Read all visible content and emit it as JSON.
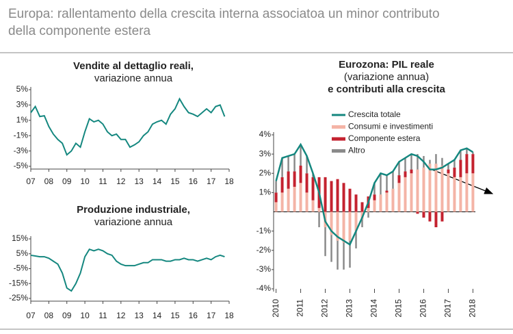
{
  "title": "Europa: rallentamento della crescita interna associatoa un minor contributo della componente estera",
  "chart_data": [
    {
      "type": "line",
      "title": "Vendite al dettaglio reali,",
      "subtitle": "variazione annua",
      "color": "#14877f",
      "x": [
        2007,
        2007.25,
        2007.5,
        2007.75,
        2008,
        2008.25,
        2008.5,
        2008.75,
        2009,
        2009.25,
        2009.5,
        2009.75,
        2010,
        2010.25,
        2010.5,
        2010.75,
        2011,
        2011.25,
        2011.5,
        2011.75,
        2012,
        2012.25,
        2012.5,
        2012.75,
        2013,
        2013.25,
        2013.5,
        2013.75,
        2014,
        2014.25,
        2014.5,
        2014.75,
        2015,
        2015.25,
        2015.5,
        2015.75,
        2016,
        2016.25,
        2016.5,
        2016.75,
        2017,
        2017.25,
        2017.5,
        2017.75
      ],
      "values": [
        2.0,
        2.8,
        1.5,
        1.6,
        0.2,
        -0.8,
        -1.5,
        -2.0,
        -3.5,
        -3.0,
        -2.0,
        -2.5,
        -0.5,
        1.2,
        0.8,
        1.0,
        0.5,
        -0.5,
        -1.0,
        -0.8,
        -1.5,
        -1.5,
        -2.5,
        -2.2,
        -1.8,
        -1.0,
        -0.5,
        0.5,
        0.8,
        1.0,
        0.5,
        1.8,
        2.5,
        3.8,
        2.8,
        2.0,
        1.8,
        1.5,
        2.0,
        2.5,
        2.0,
        2.8,
        3.0,
        1.5
      ],
      "xlim": [
        2007,
        2018
      ],
      "xticks": [
        {
          "value": 2007,
          "label": "07"
        },
        {
          "value": 2008,
          "label": "08"
        },
        {
          "value": 2009,
          "label": "09"
        },
        {
          "value": 2010,
          "label": "10"
        },
        {
          "value": 2011,
          "label": "11"
        },
        {
          "value": 2012,
          "label": "12"
        },
        {
          "value": 2013,
          "label": "13"
        },
        {
          "value": 2014,
          "label": "14"
        },
        {
          "value": 2015,
          "label": "15"
        },
        {
          "value": 2016,
          "label": "16"
        },
        {
          "value": 2017,
          "label": "17"
        },
        {
          "value": 2018,
          "label": "18"
        }
      ],
      "ylim": [
        -5,
        5
      ],
      "yticks": [
        {
          "value": 5,
          "label": "5%"
        },
        {
          "value": 3,
          "label": "3%"
        },
        {
          "value": 1,
          "label": "1%"
        },
        {
          "value": -1,
          "label": "-1%"
        },
        {
          "value": -3,
          "label": "-3%"
        },
        {
          "value": -5,
          "label": "-5%"
        }
      ]
    },
    {
      "type": "line",
      "title": "Produzione industriale,",
      "subtitle": "variazione annua",
      "color": "#14877f",
      "x": [
        2007,
        2007.25,
        2007.5,
        2007.75,
        2008,
        2008.25,
        2008.5,
        2008.75,
        2009,
        2009.25,
        2009.5,
        2009.75,
        2010,
        2010.25,
        2010.5,
        2010.75,
        2011,
        2011.25,
        2011.5,
        2011.75,
        2012,
        2012.25,
        2012.5,
        2012.75,
        2013,
        2013.25,
        2013.5,
        2013.75,
        2014,
        2014.25,
        2014.5,
        2014.75,
        2015,
        2015.25,
        2015.5,
        2015.75,
        2016,
        2016.25,
        2016.5,
        2016.75,
        2017,
        2017.25,
        2017.5,
        2017.75
      ],
      "values": [
        4,
        3.5,
        3,
        3,
        2,
        0,
        -2,
        -8,
        -18,
        -20,
        -15,
        -8,
        3,
        8,
        7,
        8,
        7,
        5,
        4,
        0,
        -2,
        -3,
        -3,
        -3,
        -2,
        -1,
        -1,
        1,
        1,
        1,
        0,
        0,
        1,
        1,
        2,
        1,
        1,
        0,
        1,
        2,
        1,
        3,
        4,
        3
      ],
      "xlim": [
        2007,
        2018
      ],
      "xticks": [
        {
          "value": 2007,
          "label": "07"
        },
        {
          "value": 2008,
          "label": "08"
        },
        {
          "value": 2009,
          "label": "09"
        },
        {
          "value": 2010,
          "label": "10"
        },
        {
          "value": 2011,
          "label": "11"
        },
        {
          "value": 2012,
          "label": "12"
        },
        {
          "value": 2013,
          "label": "13"
        },
        {
          "value": 2014,
          "label": "14"
        },
        {
          "value": 2015,
          "label": "15"
        },
        {
          "value": 2016,
          "label": "16"
        },
        {
          "value": 2017,
          "label": "17"
        },
        {
          "value": 2018,
          "label": "18"
        }
      ],
      "ylim": [
        -25,
        15
      ],
      "yticks": [
        {
          "value": 15,
          "label": "15%"
        },
        {
          "value": 5,
          "label": "5%"
        },
        {
          "value": -5,
          "label": "-5%"
        },
        {
          "value": -15,
          "label": "-15%"
        },
        {
          "value": -25,
          "label": "-25%"
        }
      ]
    },
    {
      "type": "combo",
      "title": [
        "Eurozona: PIL reale",
        "e contributi alla crescita"
      ],
      "subtitle": "(variazione annua)",
      "x": [
        2010,
        2010.25,
        2010.5,
        2010.75,
        2011,
        2011.25,
        2011.5,
        2011.75,
        2012,
        2012.25,
        2012.5,
        2012.75,
        2013,
        2013.25,
        2013.5,
        2013.75,
        2014,
        2014.25,
        2014.5,
        2014.75,
        2015,
        2015.25,
        2015.5,
        2015.75,
        2016,
        2016.25,
        2016.5,
        2016.75,
        2017,
        2017.25,
        2017.5,
        2017.75,
        2018
      ],
      "series": [
        {
          "name": "Crescita totale",
          "kind": "line",
          "color": "#14877f",
          "values": [
            1.6,
            2.8,
            2.9,
            3.0,
            3.5,
            2.9,
            2.0,
            1.0,
            -0.5,
            -1.0,
            -1.3,
            -1.5,
            -1.7,
            -1.0,
            -0.3,
            0.5,
            1.5,
            2.0,
            1.9,
            2.1,
            2.6,
            2.8,
            3.0,
            2.9,
            2.6,
            2.2,
            2.2,
            2.3,
            2.5,
            2.7,
            3.2,
            3.3,
            3.1
          ]
        },
        {
          "name": "Consumi e investimenti",
          "kind": "bar",
          "color": "#f4b4a6",
          "values": [
            0.5,
            1.0,
            1.2,
            1.3,
            1.5,
            1.0,
            0.6,
            0.2,
            -0.8,
            -1.2,
            -1.5,
            -1.6,
            -1.5,
            -1.0,
            -0.4,
            0.2,
            0.6,
            0.9,
            1.0,
            1.2,
            1.5,
            1.8,
            2.0,
            2.2,
            2.3,
            2.5,
            2.5,
            2.4,
            2.0,
            1.8,
            1.8,
            2.0,
            2.0
          ]
        },
        {
          "name": "Componente estera",
          "kind": "bar",
          "color": "#c4222f",
          "values": [
            0.5,
            0.8,
            0.9,
            0.8,
            0.9,
            1.0,
            1.2,
            1.6,
            1.8,
            1.6,
            1.7,
            1.5,
            1.2,
            0.9,
            0.5,
            0.6,
            0.3,
            0.0,
            0.1,
            0.0,
            0.4,
            0.3,
            0.2,
            -0.1,
            -0.3,
            -0.5,
            -0.8,
            -0.5,
            0.2,
            0.5,
            0.9,
            1.0,
            1.0
          ]
        },
        {
          "name": "Altro",
          "kind": "bar",
          "color": "#8a8a8a",
          "values": [
            0.6,
            1.0,
            0.8,
            0.9,
            1.1,
            0.9,
            0.2,
            -0.8,
            -1.5,
            -1.4,
            -1.5,
            -1.4,
            -1.4,
            -0.9,
            -0.4,
            -0.3,
            0.6,
            1.1,
            0.8,
            0.9,
            0.7,
            0.7,
            0.8,
            0.8,
            0.6,
            0.2,
            0.5,
            0.4,
            0.3,
            0.4,
            0.5,
            0.3,
            0.1
          ]
        }
      ],
      "xlim": [
        2009.9,
        2018.1
      ],
      "xticks": [
        2010,
        2011,
        2012,
        2013,
        2014,
        2015,
        2016,
        2017,
        2018
      ],
      "ylim": [
        -4,
        4
      ],
      "yticks": [
        {
          "value": 4,
          "label": "4%"
        },
        {
          "value": 3,
          "label": "3%"
        },
        {
          "value": 2,
          "label": "2%"
        },
        {
          "value": 1,
          "label": "1%"
        },
        {
          "value": -1,
          "label": "-1%"
        },
        {
          "value": -2,
          "label": "-2%"
        },
        {
          "value": -3,
          "label": "-3%"
        },
        {
          "value": -4,
          "label": "-4%"
        }
      ]
    }
  ]
}
